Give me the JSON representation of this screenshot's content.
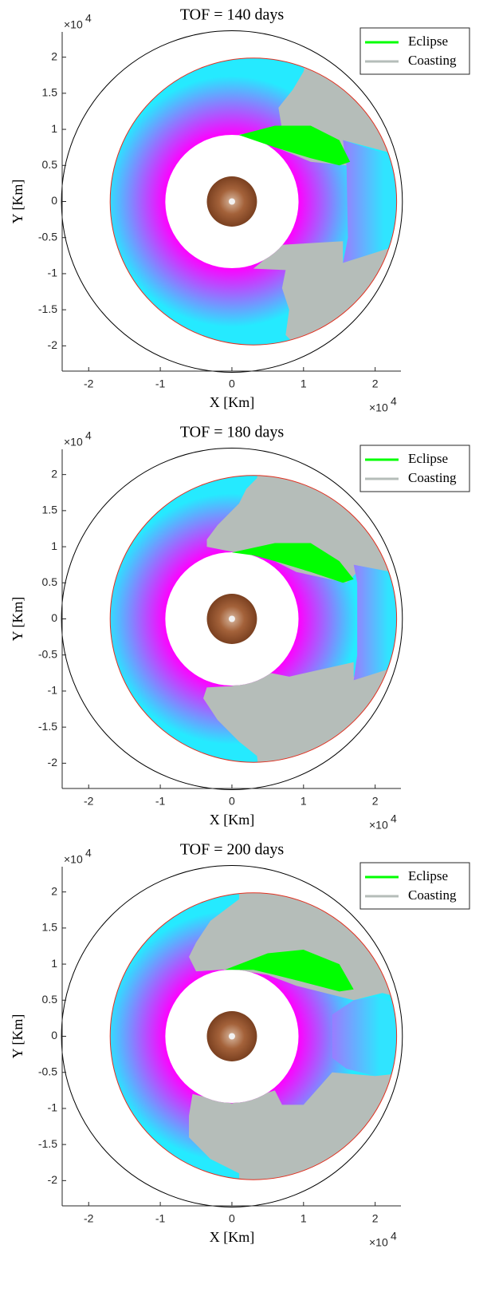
{
  "chart_data": [
    {
      "type": "orbit",
      "title": "TOF = 140 days",
      "xlabel": "X [Km]",
      "ylabel": "Y [Km]",
      "x_scale_label": "×10",
      "x_scale_exponent": "4",
      "y_scale_label": "×10",
      "y_scale_exponent": "4",
      "xlim": [
        -2.37,
        2.36
      ],
      "ylim": [
        -2.35,
        2.35
      ],
      "xticks": [
        -2,
        -1,
        0,
        1,
        2
      ],
      "yticks": [
        -2,
        -1.5,
        -1,
        -0.5,
        0,
        0.5,
        1,
        1.5,
        2
      ],
      "series": [
        {
          "name": "Eclipse",
          "color": "#00ff00"
        },
        {
          "name": "Coasting",
          "color": "#b5bdb9"
        }
      ],
      "legend": "top-right",
      "grid": false
    },
    {
      "type": "orbit",
      "title": "TOF = 180 days",
      "xlabel": "X [Km]",
      "ylabel": "Y [Km]",
      "x_scale_label": "×10",
      "x_scale_exponent": "4",
      "y_scale_label": "×10",
      "y_scale_exponent": "4",
      "xlim": [
        -2.37,
        2.36
      ],
      "ylim": [
        -2.35,
        2.35
      ],
      "xticks": [
        -2,
        -1,
        0,
        1,
        2
      ],
      "yticks": [
        -2,
        -1.5,
        -1,
        -0.5,
        0,
        0.5,
        1,
        1.5,
        2
      ],
      "series": [
        {
          "name": "Eclipse",
          "color": "#00ff00"
        },
        {
          "name": "Coasting",
          "color": "#b5bdb9"
        }
      ],
      "legend": "top-right",
      "grid": false
    },
    {
      "type": "orbit",
      "title": "TOF = 200 days",
      "xlabel": "X [Km]",
      "ylabel": "Y [Km]",
      "x_scale_label": "×10",
      "x_scale_exponent": "4",
      "y_scale_label": "×10",
      "y_scale_exponent": "4",
      "xlim": [
        -2.37,
        2.36
      ],
      "ylim": [
        -2.35,
        2.35
      ],
      "xticks": [
        -2,
        -1,
        0,
        1,
        2
      ],
      "yticks": [
        -2,
        -1.5,
        -1,
        -0.5,
        0,
        0.5,
        1,
        1.5,
        2
      ],
      "series": [
        {
          "name": "Eclipse",
          "color": "#00ff00"
        },
        {
          "name": "Coasting",
          "color": "#b5bdb9"
        }
      ],
      "legend": "top-right",
      "grid": false
    }
  ]
}
